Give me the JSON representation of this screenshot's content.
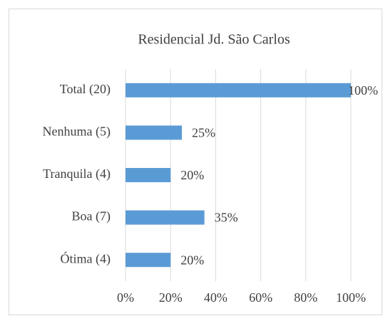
{
  "chart_data": {
    "type": "bar",
    "orientation": "horizontal",
    "title": "Residencial Jd. São Carlos",
    "categories": [
      "Total (20)",
      "Nenhuma (5)",
      "Tranquila (4)",
      "Boa (7)",
      "Ótima (4)"
    ],
    "values": [
      100,
      25,
      20,
      35,
      20
    ],
    "value_labels": [
      "100%",
      "25%",
      "20%",
      "35%",
      "20%"
    ],
    "color": "#5b9bd5",
    "xlim": [
      0,
      100
    ],
    "xticks": [
      {
        "value": 0,
        "label": "0%"
      },
      {
        "value": 20,
        "label": "20%"
      },
      {
        "value": 40,
        "label": "40%"
      },
      {
        "value": 60,
        "label": "60%"
      },
      {
        "value": 80,
        "label": "80%"
      },
      {
        "value": 100,
        "label": "100%"
      }
    ],
    "grid": true
  }
}
